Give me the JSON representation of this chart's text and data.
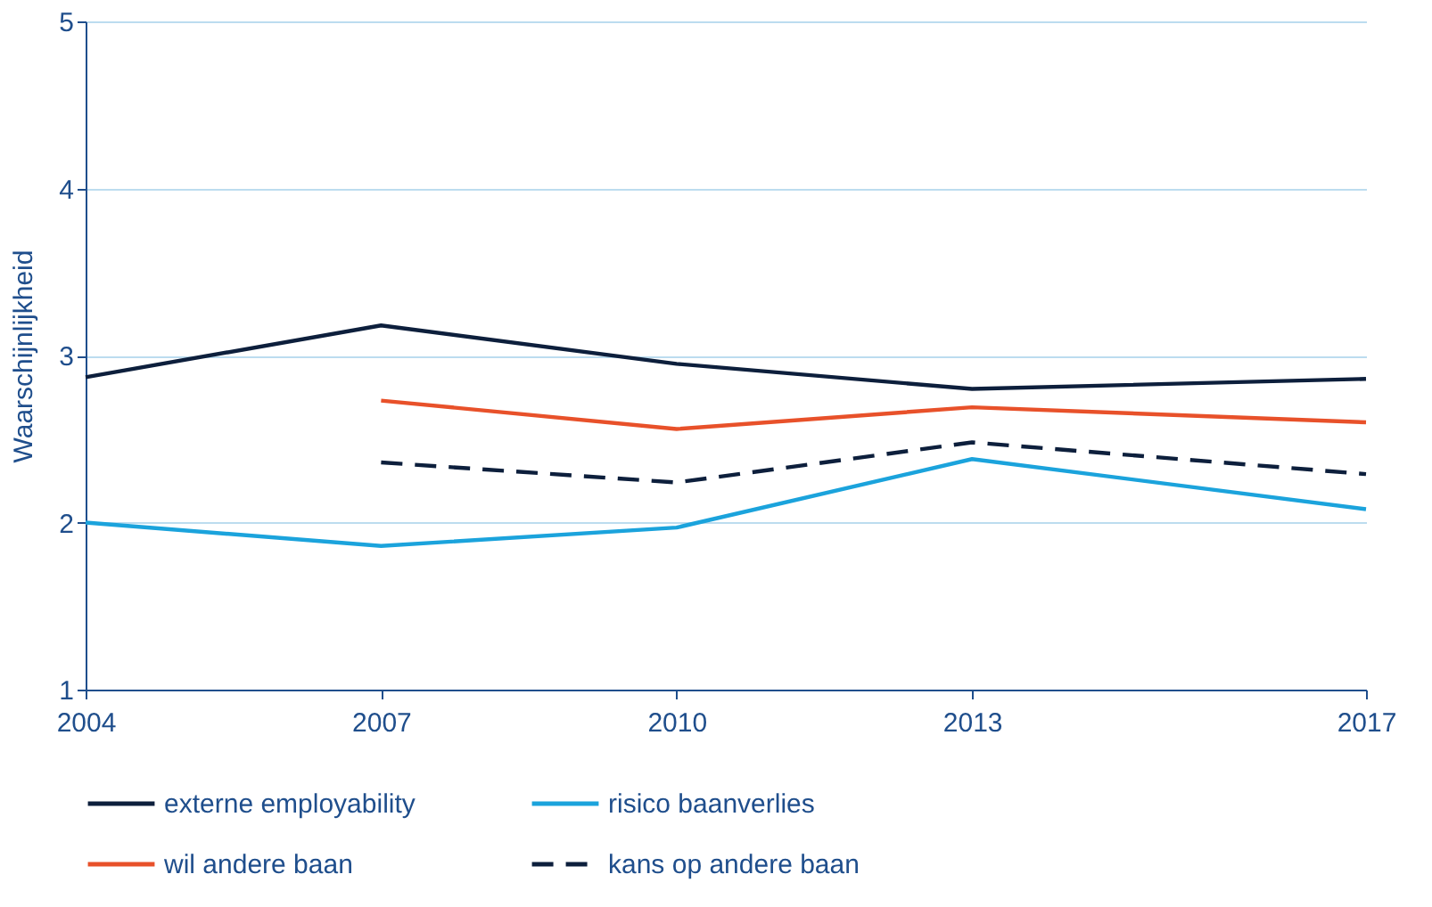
{
  "chart_data": {
    "type": "line",
    "ylabel": "Waarschijnlijkheid",
    "x": [
      2004,
      2007,
      2010,
      2013,
      2017
    ],
    "series": [
      {
        "name": "externe employability",
        "color": "#0d1f3c",
        "line_style": "solid",
        "values": [
          2.87,
          3.18,
          2.95,
          2.8,
          2.86
        ]
      },
      {
        "name": "risico baanverlies",
        "color": "#1ba3dc",
        "line_style": "solid",
        "values": [
          2.0,
          1.86,
          1.97,
          2.38,
          2.08
        ]
      },
      {
        "name": "wil andere baan",
        "color": "#e8512a",
        "line_style": "solid",
        "values": [
          null,
          2.73,
          2.56,
          2.69,
          2.6
        ]
      },
      {
        "name": "kans op andere baan",
        "color": "#0d1f3c",
        "line_style": "dashed",
        "values": [
          null,
          2.36,
          2.24,
          2.48,
          2.29
        ]
      }
    ],
    "xlim": [
      2004,
      2017
    ],
    "xticks": [
      2004,
      2007,
      2010,
      2013,
      2017
    ],
    "ylim": [
      1,
      5
    ],
    "yticks": [
      1,
      2,
      3,
      4,
      5
    ],
    "grid": "y",
    "legend": "bottom",
    "marker": "none"
  }
}
